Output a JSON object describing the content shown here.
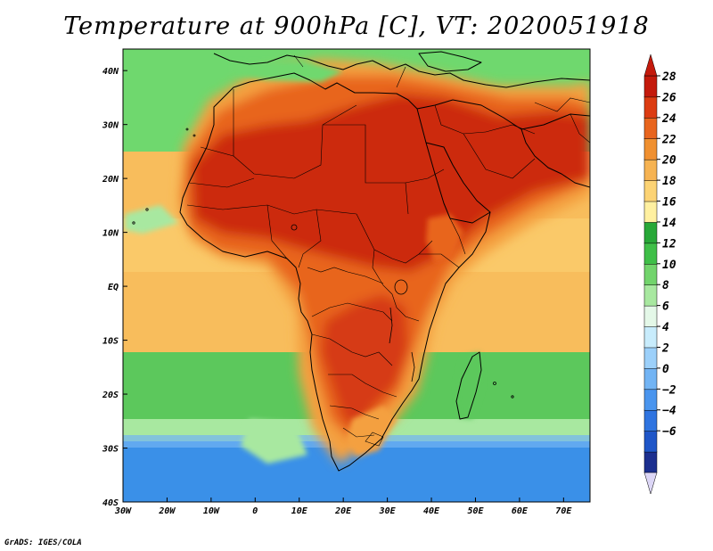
{
  "title": "Temperature at 900hPa [C], VT: 2020051918",
  "credit": "GrADS: IGES/COLA",
  "map": {
    "lon_range": [
      -30,
      76
    ],
    "lat_range": [
      -40,
      44
    ],
    "lon_ticks": [
      {
        "value": -30,
        "label": "30W"
      },
      {
        "value": -20,
        "label": "20W"
      },
      {
        "value": -10,
        "label": "10W"
      },
      {
        "value": 0,
        "label": "0"
      },
      {
        "value": 10,
        "label": "10E"
      },
      {
        "value": 20,
        "label": "20E"
      },
      {
        "value": 30,
        "label": "30E"
      },
      {
        "value": 40,
        "label": "40E"
      },
      {
        "value": 50,
        "label": "50E"
      },
      {
        "value": 60,
        "label": "60E"
      },
      {
        "value": 70,
        "label": "70E"
      }
    ],
    "lat_ticks": [
      {
        "value": 40,
        "label": "40N"
      },
      {
        "value": 30,
        "label": "30N"
      },
      {
        "value": 20,
        "label": "20N"
      },
      {
        "value": 10,
        "label": "10N"
      },
      {
        "value": 0,
        "label": "EQ"
      },
      {
        "value": -10,
        "label": "10S"
      },
      {
        "value": -20,
        "label": "20S"
      },
      {
        "value": -30,
        "label": "30S"
      },
      {
        "value": -40,
        "label": "40S"
      }
    ]
  },
  "colorbar": {
    "bins": [
      {
        "color": "#1c2f8f"
      },
      {
        "color": "#1f56c8"
      },
      {
        "color": "#2f74e0"
      },
      {
        "color": "#4a95ee"
      },
      {
        "color": "#72b4f4"
      },
      {
        "color": "#9cd0fa"
      },
      {
        "color": "#c8ecfc"
      },
      {
        "color": "#e4f8e8"
      },
      {
        "color": "#a8e8a0"
      },
      {
        "color": "#72d46c"
      },
      {
        "color": "#3fbf48"
      },
      {
        "color": "#28a838"
      },
      {
        "color": "#fff0a0"
      },
      {
        "color": "#fcd374"
      },
      {
        "color": "#f6b352"
      },
      {
        "color": "#f09030"
      },
      {
        "color": "#e8651e"
      },
      {
        "color": "#dc3c12"
      },
      {
        "color": "#c41a0c"
      }
    ],
    "labels": [
      "28",
      "26",
      "24",
      "22",
      "20",
      "18",
      "16",
      "14",
      "12",
      "10",
      "8",
      "6",
      "4",
      "2",
      "0",
      "−2",
      "−4",
      "−6"
    ],
    "top_arrow_color": "#c41a0c",
    "bottom_arrow_color": "#dcd6f6"
  },
  "colors": {
    "ocean_north": "#6fd86e",
    "ocean_tropical": "#f8bd5c",
    "ocean_south_mid": "#5cc85c",
    "ocean_south_cold": "#3a90e8",
    "land_hot": "#cc2c10",
    "land_warm": "#e8651e",
    "land_mild": "#f4a040",
    "coast": "#000000"
  }
}
